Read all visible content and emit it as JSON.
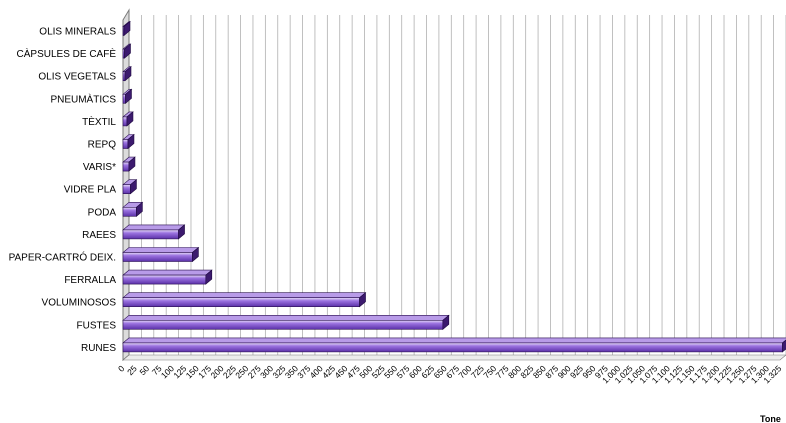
{
  "chart_data": {
    "type": "bar",
    "orientation": "horizontal",
    "style": "3d",
    "categories": [
      "OLIS MINERALS",
      "CÀPSULES DE CAFÈ",
      "OLIS VEGETALS",
      "PNEUMÀTICS",
      "TÈXTIL",
      "REPQ",
      "VARIS*",
      "VIDRE PLA",
      "PODA",
      "RAEES",
      "PAPER-CARTRÓ DEIX.",
      "FERRALLA",
      "VOLUMINOSOS",
      "FUSTES",
      "RUNES"
    ],
    "values": [
      2,
      3,
      4,
      5,
      8,
      10,
      12,
      15,
      27,
      112,
      140,
      167,
      477,
      645,
      1330
    ],
    "xlim": [
      0,
      1325
    ],
    "xticks": [
      "0",
      "25",
      "50",
      "75",
      "100",
      "125",
      "150",
      "175",
      "200",
      "225",
      "250",
      "275",
      "300",
      "325",
      "350",
      "375",
      "400",
      "425",
      "450",
      "475",
      "500",
      "525",
      "550",
      "575",
      "600",
      "625",
      "650",
      "675",
      "700",
      "725",
      "750",
      "775",
      "800",
      "825",
      "850",
      "875",
      "900",
      "925",
      "950",
      "975",
      "1.000",
      "1.025",
      "1.050",
      "1.075",
      "1.100",
      "1.125",
      "1.150",
      "1.175",
      "1.200",
      "1.225",
      "1.250",
      "1.275",
      "1.300",
      "1.325"
    ],
    "xlabel": "Tone",
    "grid": true,
    "colors": {
      "bar_front": "#8a5fd6",
      "bar_top": "#b89be8",
      "bar_side": "#3c1a6e",
      "grid": "#b0b0b0",
      "wall": "#7a7a7a"
    }
  }
}
